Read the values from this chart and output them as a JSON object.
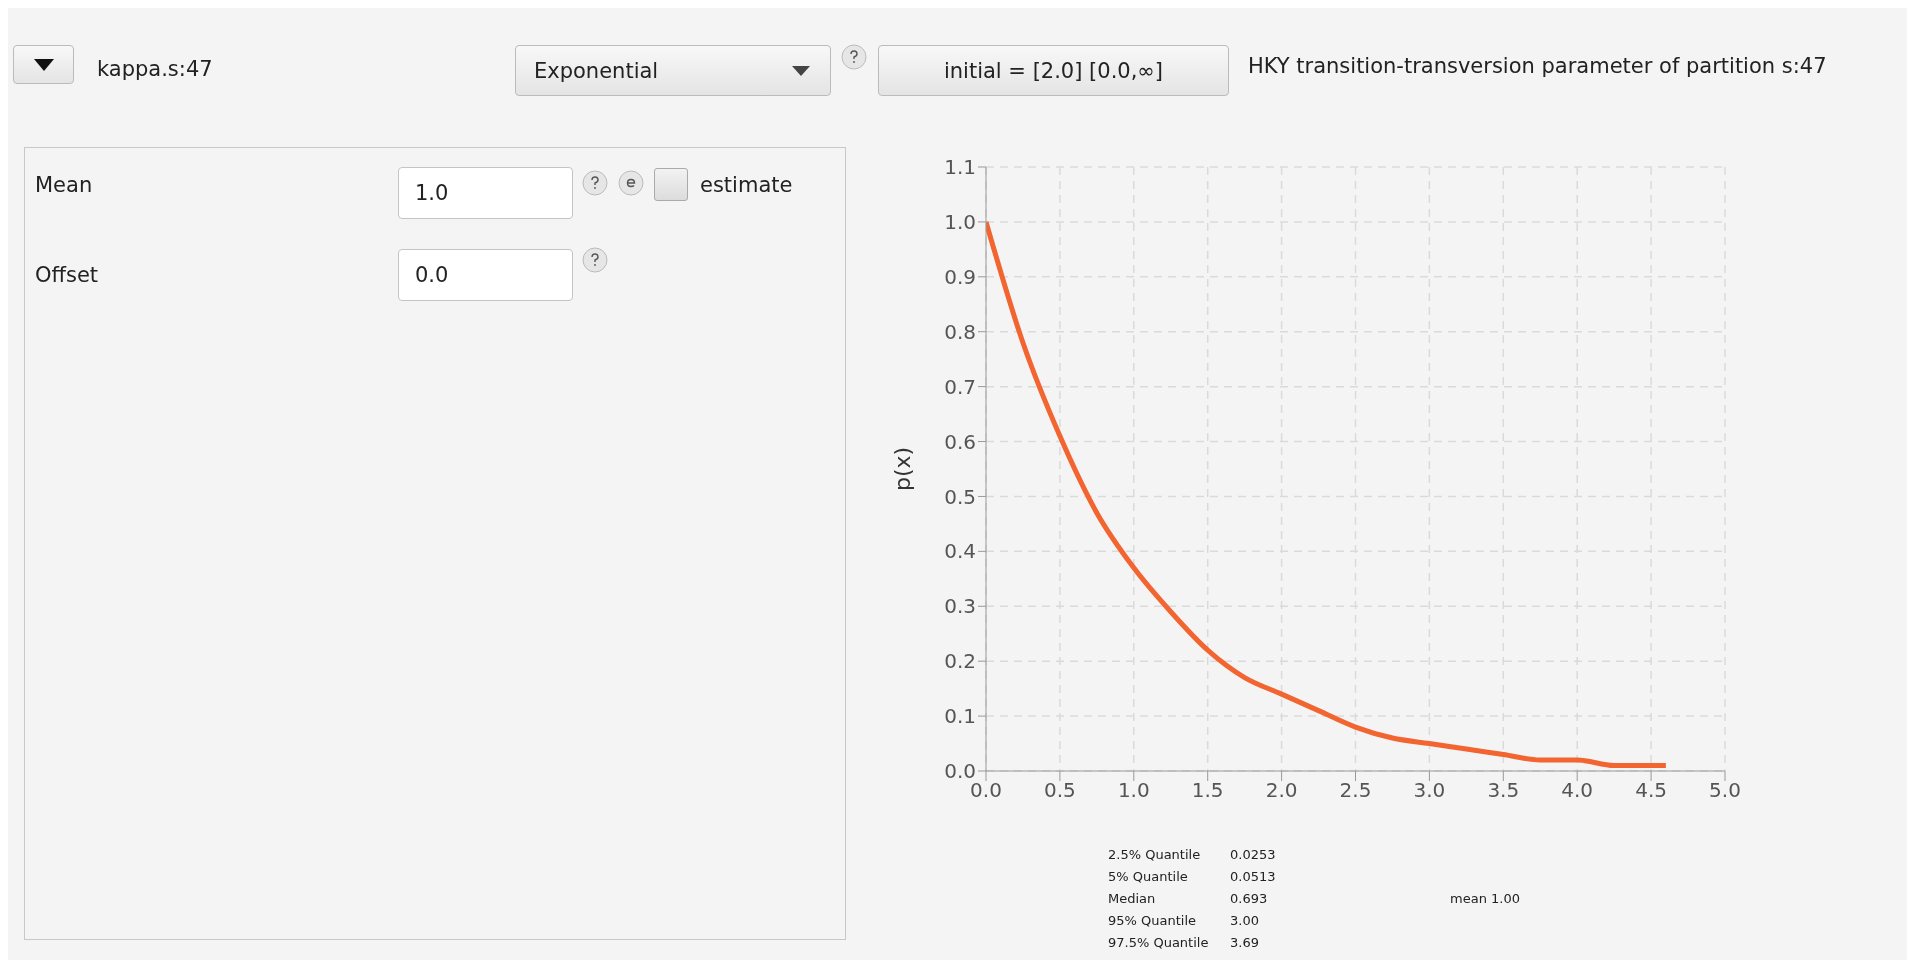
{
  "chart_data": {
    "type": "line",
    "ylabel": "p(x)",
    "x": [
      0,
      0.25,
      0.5,
      0.75,
      1,
      1.25,
      1.5,
      1.75,
      2,
      2.25,
      2.5,
      2.75,
      3,
      3.25,
      3.5,
      3.75,
      4,
      4.25,
      4.5,
      4.6
    ],
    "series": [
      {
        "color": "#f26430",
        "values": [
          1.0,
          0.78,
          0.61,
          0.47,
          0.37,
          0.29,
          0.22,
          0.17,
          0.14,
          0.11,
          0.08,
          0.06,
          0.05,
          0.04,
          0.03,
          0.02,
          0.02,
          0.01,
          0.01,
          0.01
        ]
      }
    ],
    "xlim": [
      0,
      5
    ],
    "xticks": [
      {
        "value": 0,
        "label": "0.0"
      },
      {
        "value": 0.5,
        "label": "0.5"
      },
      {
        "value": 1,
        "label": "1.0"
      },
      {
        "value": 1.5,
        "label": "1.5"
      },
      {
        "value": 2,
        "label": "2.0"
      },
      {
        "value": 2.5,
        "label": "2.5"
      },
      {
        "value": 3,
        "label": "3.0"
      },
      {
        "value": 3.5,
        "label": "3.5"
      },
      {
        "value": 4,
        "label": "4.0"
      },
      {
        "value": 4.5,
        "label": "4.5"
      },
      {
        "value": 5,
        "label": "5.0"
      }
    ],
    "ylim": [
      0,
      1.1
    ],
    "yticks": [
      {
        "value": 0,
        "label": "0.0"
      },
      {
        "value": 0.1,
        "label": "0.1"
      },
      {
        "value": 0.2,
        "label": "0.2"
      },
      {
        "value": 0.3,
        "label": "0.3"
      },
      {
        "value": 0.4,
        "label": "0.4"
      },
      {
        "value": 0.5,
        "label": "0.5"
      },
      {
        "value": 0.6,
        "label": "0.6"
      },
      {
        "value": 0.7,
        "label": "0.7"
      },
      {
        "value": 0.8,
        "label": "0.8"
      },
      {
        "value": 0.9,
        "label": "0.9"
      },
      {
        "value": 1,
        "label": "1.0"
      },
      {
        "value": 1.1,
        "label": "1.1"
      }
    ],
    "grid": true,
    "marker": "none",
    "line_style": "solid",
    "legend": false,
    "annotations": [
      "kappa.s:47",
      "Exponential",
      "initial = [2.0] [0.0,∞]",
      "HKY transition-transversion parameter of partition s:47",
      "Mean",
      "1.0",
      "estimate",
      "Offset",
      "0.0",
      "2.5% Quantile",
      "0.0253",
      "5% Quantile",
      "0.0513",
      "Median",
      "0.693",
      "95% Quantile",
      "3.00",
      "97.5% Quantile",
      "3.69",
      "mean 1.00"
    ]
  }
}
